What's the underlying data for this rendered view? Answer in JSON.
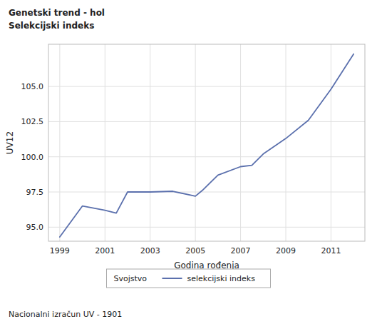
{
  "chart_data": {
    "type": "line",
    "title": "Genetski trend - hol",
    "subtitle": "Selekcijski indeks",
    "x_label": "Godina rođenja",
    "y_label": "UV12",
    "annotations": [
      "Nacionalni izračun UV - 1901"
    ],
    "legend_title": "Svojstvo",
    "legend": "bottom",
    "grid": true,
    "x": [
      1999,
      2000,
      2001,
      2001.5,
      2002,
      2003,
      2004,
      2005,
      2005.3,
      2006,
      2007,
      2007.5,
      2008,
      2009,
      2010,
      2011,
      2012
    ],
    "series": [
      {
        "name": "selekcijski indeks",
        "color": "#5b70ad",
        "values": [
          94.3,
          96.5,
          96.2,
          96.0,
          97.5,
          97.5,
          97.55,
          97.2,
          97.6,
          98.7,
          99.3,
          99.4,
          100.2,
          101.3,
          102.6,
          104.8,
          107.3
        ]
      }
    ],
    "xlim": [
      1998.5,
      2012.5
    ],
    "ylim": [
      94.0,
      108.0
    ],
    "xticks": [
      1999,
      2001,
      2003,
      2005,
      2007,
      2009,
      2011
    ],
    "yticks": [
      {
        "value": 95.0,
        "label": "95.0"
      },
      97.5,
      {
        "value": 100.0,
        "label": "100.0"
      },
      102.5,
      {
        "value": 105.0,
        "label": "105.0"
      }
    ]
  }
}
